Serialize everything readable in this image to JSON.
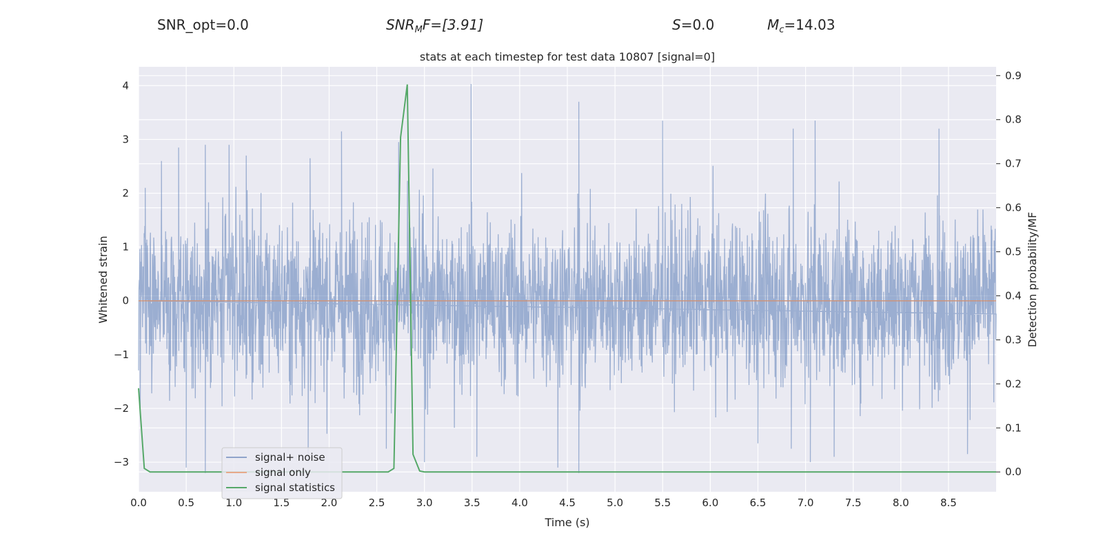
{
  "header": {
    "snr_opt": "SNR_opt=0.0",
    "snr_mf_base": "SNR",
    "snr_mf_sub": "M",
    "snr_mf_tail": "F=[3.91]",
    "s_var": "S",
    "s_tail": "=0.0",
    "mc_var": "M",
    "mc_sub": "c",
    "mc_tail": "=14.03"
  },
  "chart_data": {
    "type": "line",
    "title": "stats at each timestep for test data 10807 [signal=0]",
    "xlabel": "Time (s)",
    "ylabel": "Whitened strain",
    "y2label": "Detection probability/MF",
    "xlim": [
      0.0,
      9.0
    ],
    "ylim": [
      -3.55,
      4.35
    ],
    "y2lim": [
      -0.045,
      0.92
    ],
    "xticks": [
      "0.0",
      "0.5",
      "1.0",
      "1.5",
      "2.0",
      "2.5",
      "3.0",
      "3.5",
      "4.0",
      "4.5",
      "5.0",
      "5.5",
      "6.0",
      "6.5",
      "7.0",
      "7.5",
      "8.0",
      "8.5"
    ],
    "yticks": [
      "4",
      "3",
      "2",
      "1",
      "0",
      "−1",
      "−2",
      "−3"
    ],
    "y2ticks": [
      "0.9",
      "0.8",
      "0.7",
      "0.6",
      "0.5",
      "0.4",
      "0.3",
      "0.2",
      "0.1",
      "0.0"
    ],
    "grid": true,
    "legend": {
      "placement": "lower-left",
      "entries": [
        "signal+ noise",
        "signal only",
        "signal statistics"
      ]
    },
    "series": [
      {
        "name": "signal+ noise",
        "color": "#4c72b0",
        "axis": "left",
        "description_values": "dense whitened noise, mostly within [-1.6, 1.7], peaks near 4.0 at t≈3.5 and −3.2 at t≈0.7, 4.6",
        "peaks": [
          [
            0.07,
            2.1
          ],
          [
            0.24,
            2.6
          ],
          [
            0.42,
            2.85
          ],
          [
            0.5,
            -3.1
          ],
          [
            0.7,
            2.9
          ],
          [
            0.7,
            -3.2
          ],
          [
            0.95,
            2.9
          ],
          [
            1.13,
            2.7
          ],
          [
            1.78,
            -3.0
          ],
          [
            1.8,
            2.65
          ],
          [
            2.13,
            3.15
          ],
          [
            2.6,
            -2.75
          ],
          [
            2.73,
            2.95
          ],
          [
            3.0,
            -3.0
          ],
          [
            3.49,
            4.03
          ],
          [
            3.55,
            -2.9
          ],
          [
            4.4,
            -3.1
          ],
          [
            4.62,
            3.7
          ],
          [
            4.62,
            -3.2
          ],
          [
            5.5,
            3.35
          ],
          [
            6.5,
            -2.65
          ],
          [
            6.85,
            -2.75
          ],
          [
            6.87,
            3.2
          ],
          [
            7.1,
            3.35
          ],
          [
            7.05,
            -3.0
          ],
          [
            7.3,
            -2.9
          ],
          [
            8.4,
            3.2
          ],
          [
            8.7,
            -2.85
          ]
        ]
      },
      {
        "name": "signal only",
        "color": "#dd8452",
        "axis": "left",
        "x": [
          0.0,
          9.0
        ],
        "y": [
          0.0,
          0.0
        ]
      },
      {
        "name": "signal statistics",
        "color": "#55a868",
        "axis": "right",
        "x": [
          0.0,
          0.06,
          0.12,
          0.5,
          1.0,
          1.5,
          2.0,
          2.5,
          2.62,
          2.68,
          2.75,
          2.82,
          2.88,
          2.95,
          3.0,
          4.0,
          5.0,
          6.0,
          7.0,
          8.0,
          9.0
        ],
        "y": [
          0.19,
          0.008,
          0.0,
          0.0,
          0.0,
          0.0,
          0.0,
          0.0,
          0.0,
          0.008,
          0.76,
          0.88,
          0.04,
          0.002,
          0.0,
          0.0,
          0.0,
          0.0,
          0.0,
          0.0,
          0.0
        ]
      }
    ]
  }
}
